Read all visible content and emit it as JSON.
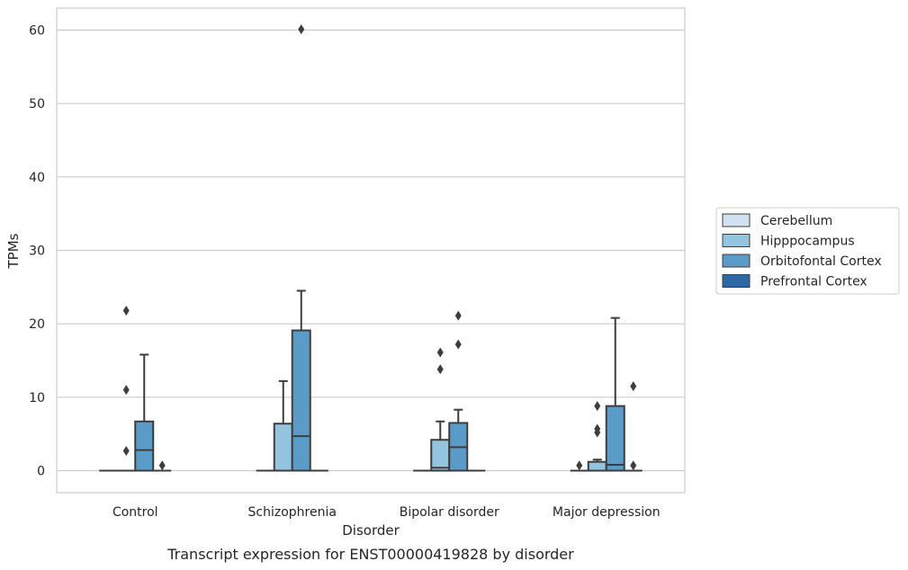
{
  "caption": "Transcript expression for ENST00000419828 by disorder",
  "chart_data": {
    "type": "box",
    "title": "",
    "xlabel": "Disorder",
    "ylabel": "TPMs",
    "ylim": [
      -3,
      63
    ],
    "yticks": [
      0,
      10,
      20,
      30,
      40,
      50,
      60
    ],
    "grid": "horizontal",
    "legend_position": "right",
    "categories": [
      "Control",
      "Schizophrenia",
      "Bipolar disorder",
      "Major depression"
    ],
    "series": [
      {
        "name": "Cerebellum",
        "color": "#d0e1f2",
        "boxes": [
          {
            "q1": 0,
            "median": 0,
            "q3": 0,
            "whisker_low": 0,
            "whisker_high": 0,
            "outliers": []
          },
          {
            "q1": 0,
            "median": 0,
            "q3": 0,
            "whisker_low": 0,
            "whisker_high": 0,
            "outliers": []
          },
          {
            "q1": 0,
            "median": 0,
            "q3": 0,
            "whisker_low": 0,
            "whisker_high": 0,
            "outliers": []
          },
          {
            "q1": 0,
            "median": 0,
            "q3": 0,
            "whisker_low": 0,
            "whisker_high": 0,
            "outliers": [
              0.7
            ]
          }
        ]
      },
      {
        "name": "Hipppocampus",
        "color": "#94c4df",
        "boxes": [
          {
            "q1": 0,
            "median": 0,
            "q3": 0,
            "whisker_low": 0,
            "whisker_high": 0,
            "outliers": [
              2.7,
              11,
              21.8
            ]
          },
          {
            "q1": 0,
            "median": 0,
            "q3": 6.4,
            "whisker_low": 0,
            "whisker_high": 12.2,
            "outliers": []
          },
          {
            "q1": 0,
            "median": 0.4,
            "q3": 4.2,
            "whisker_low": 0,
            "whisker_high": 6.7,
            "outliers": [
              13.8,
              16.1
            ]
          },
          {
            "q1": 0,
            "median": 0,
            "q3": 1.2,
            "whisker_low": 0,
            "whisker_high": 1.5,
            "outliers": [
              5.2,
              5.7,
              8.8
            ]
          }
        ]
      },
      {
        "name": "Orbitofontal Cortex",
        "color": "#5a9bc7",
        "boxes": [
          {
            "q1": 0,
            "median": 2.8,
            "q3": 6.7,
            "whisker_low": 0,
            "whisker_high": 15.8,
            "outliers": []
          },
          {
            "q1": 0,
            "median": 4.7,
            "q3": 19.1,
            "whisker_low": 0,
            "whisker_high": 24.5,
            "outliers": [
              60.1
            ]
          },
          {
            "q1": 0,
            "median": 3.2,
            "q3": 6.5,
            "whisker_low": 0,
            "whisker_high": 8.3,
            "outliers": [
              17.2,
              21.1
            ]
          },
          {
            "q1": 0,
            "median": 0.8,
            "q3": 8.8,
            "whisker_low": 0,
            "whisker_high": 20.8,
            "outliers": []
          }
        ]
      },
      {
        "name": "Prefrontal Cortex",
        "color": "#2a6aaa",
        "boxes": [
          {
            "q1": 0,
            "median": 0,
            "q3": 0,
            "whisker_low": 0,
            "whisker_high": 0,
            "outliers": [
              0.7
            ]
          },
          {
            "q1": 0,
            "median": 0,
            "q3": 0,
            "whisker_low": 0,
            "whisker_high": 0,
            "outliers": []
          },
          {
            "q1": 0,
            "median": 0,
            "q3": 0,
            "whisker_low": 0,
            "whisker_high": 0,
            "outliers": []
          },
          {
            "q1": 0,
            "median": 0,
            "q3": 0,
            "whisker_low": 0,
            "whisker_high": 0,
            "outliers": [
              0.7,
              11.5
            ]
          }
        ]
      }
    ]
  }
}
